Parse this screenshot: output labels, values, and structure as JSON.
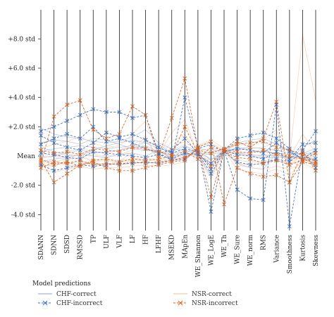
{
  "chart_data": {
    "type": "line",
    "subtype": "parallel-coordinates",
    "axes": [
      "SDANN",
      "SDNN",
      "SDSD",
      "RMSSD",
      "TP",
      "ULF",
      "VLF",
      "LF",
      "HF",
      "LFHF",
      "MSEKD",
      "MApEn",
      "WE_Shannon",
      "WE_LogE",
      "WE_Th",
      "WE_Sure",
      "WE_norm",
      "RMS",
      "Variance",
      "Smoothness",
      "Kurtosis",
      "Skewness"
    ],
    "y_ticks": [
      {
        "value": 8,
        "label": "+8.0 std"
      },
      {
        "value": 6,
        "label": "+6.0 std"
      },
      {
        "value": 4,
        "label": "+4.0 std"
      },
      {
        "value": 2,
        "label": "+2.0 std"
      },
      {
        "value": 0,
        "label": "Mean"
      },
      {
        "value": -2,
        "label": "-2.0 std"
      },
      {
        "value": -4,
        "label": "-4.0 std"
      }
    ],
    "ylim": [
      -4.8,
      9.6
    ],
    "grid": false,
    "legend": {
      "title": "Model predictions",
      "placement": "bottom",
      "entries": [
        {
          "label": "CHF-correct",
          "color": "#9db7e0",
          "style": "solid"
        },
        {
          "label": "CHF-incorrect",
          "color": "#3a6fc4",
          "style": "dashed-x"
        },
        {
          "label": "NSR-correct",
          "color": "#f3c7a8",
          "style": "solid"
        },
        {
          "label": "NSR-incorrect",
          "color": "#d9621f",
          "style": "dashed-x"
        }
      ]
    },
    "series": [
      {
        "name": "CHF-incorrect",
        "values": [
          1.7,
          2.0,
          2.4,
          2.8,
          3.2,
          3.0,
          3.0,
          2.6,
          2.8,
          0.2,
          -0.3,
          4.0,
          0.6,
          -3.8,
          0.4,
          -2.3,
          -2.9,
          -3.0,
          3.5,
          -4.8,
          0.4,
          1.7
        ]
      },
      {
        "name": "CHF-incorrect",
        "values": [
          0.8,
          1.2,
          1.5,
          1.2,
          2.0,
          1.0,
          1.2,
          0.9,
          0.5,
          0.2,
          0.4,
          1.2,
          0.2,
          -1.2,
          0.3,
          0.5,
          0.4,
          0.2,
          0.9,
          0.3,
          -0.2,
          0.4
        ]
      },
      {
        "name": "CHF-incorrect",
        "values": [
          0.2,
          0.1,
          -0.1,
          -0.2,
          0.3,
          0.2,
          0.1,
          0.0,
          -0.1,
          0.1,
          -0.2,
          0.2,
          0.1,
          -0.5,
          0.4,
          1.2,
          1.4,
          1.6,
          1.2,
          0.5,
          -0.3,
          -0.2
        ]
      },
      {
        "name": "CHF-incorrect",
        "values": [
          -0.6,
          -1.0,
          -0.8,
          -0.6,
          -0.7,
          -0.6,
          -0.5,
          -0.5,
          -0.4,
          -0.5,
          -0.3,
          -0.2,
          0.5,
          0.8,
          0.3,
          -0.4,
          -0.6,
          -0.5,
          -0.2,
          -0.4,
          0.3,
          -0.8
        ]
      },
      {
        "name": "CHF-incorrect",
        "values": [
          1.4,
          0.9,
          0.6,
          0.4,
          0.9,
          1.6,
          1.3,
          1.5,
          1.1,
          0.6,
          0.2,
          0.5,
          0.3,
          -0.9,
          0.4,
          0.1,
          0.0,
          -0.2,
          0.3,
          -0.2,
          0.8,
          0.9
        ]
      },
      {
        "name": "NSR-incorrect",
        "values": [
          -0.5,
          2.7,
          3.5,
          3.8,
          1.8,
          1.2,
          1.5,
          3.4,
          2.8,
          0.0,
          2.6,
          5.3,
          0.5,
          -2.8,
          0.4,
          1.0,
          0.6,
          1.2,
          3.7,
          -1.8,
          0.3,
          -1.0
        ]
      },
      {
        "name": "NSR-incorrect",
        "values": [
          -0.3,
          -1.8,
          -1.2,
          -0.6,
          -0.4,
          -0.8,
          -1.0,
          -1.0,
          -0.8,
          -0.6,
          -0.4,
          -0.3,
          0.6,
          1.0,
          -3.3,
          -0.8,
          -1.2,
          -1.4,
          -1.3,
          -1.8,
          -0.4,
          -0.6
        ]
      },
      {
        "name": "NSR-incorrect",
        "values": [
          -0.8,
          -0.4,
          -0.5,
          -0.3,
          -0.6,
          -0.5,
          -0.6,
          -0.4,
          -0.5,
          -0.4,
          -0.3,
          -0.1,
          0.4,
          0.2,
          0.5,
          0.8,
          0.9,
          1.0,
          0.6,
          0.4,
          0.1,
          -0.4
        ]
      },
      {
        "name": "NSR-incorrect",
        "values": [
          0.4,
          0.2,
          0.3,
          0.1,
          0.5,
          0.4,
          0.3,
          0.6,
          0.5,
          0.3,
          0.1,
          2.0,
          0.2,
          -0.7,
          0.3,
          -0.1,
          -0.2,
          -0.5,
          -0.3,
          -0.6,
          -0.3,
          0.2
        ]
      },
      {
        "name": "NSR-incorrect",
        "values": [
          -0.2,
          -0.6,
          -0.4,
          -0.7,
          -0.3,
          -0.2,
          -0.4,
          -0.2,
          -0.3,
          -0.2,
          0.0,
          0.3,
          -0.2,
          0.6,
          0.4,
          0.3,
          0.2,
          0.4,
          0.1,
          0.0,
          -0.2,
          -0.5
        ]
      },
      {
        "name": "CHF-correct",
        "values": [
          0.3,
          0.5,
          0.6,
          0.7,
          0.6,
          0.5,
          0.6,
          0.7,
          0.9,
          0.8,
          0.2,
          0.3,
          0.4,
          -0.3,
          0.4,
          0.5,
          0.6,
          0.5,
          0.4,
          0.2,
          0.1,
          0.3
        ]
      },
      {
        "name": "CHF-correct",
        "values": [
          0.9,
          1.1,
          1.0,
          0.8,
          1.2,
          1.1,
          0.8,
          0.5,
          0.4,
          0.3,
          0.0,
          0.1,
          0.2,
          0.1,
          0.3,
          0.2,
          0.1,
          0.0,
          0.1,
          -0.1,
          0.0,
          0.2
        ]
      },
      {
        "name": "CHF-correct",
        "values": [
          -0.1,
          0.0,
          0.2,
          0.4,
          0.2,
          0.3,
          0.4,
          0.6,
          0.7,
          0.3,
          -0.1,
          0.2,
          0.0,
          -0.6,
          0.3,
          0.9,
          1.1,
          1.2,
          0.8,
          0.4,
          -0.2,
          0.0
        ]
      },
      {
        "name": "CHF-correct",
        "values": [
          1.9,
          1.5,
          1.3,
          1.2,
          1.0,
          0.9,
          1.0,
          1.3,
          1.8,
          0.9,
          0.5,
          0.4,
          0.1,
          -1.4,
          0.4,
          -0.5,
          -0.8,
          -0.9,
          0.2,
          -0.3,
          0.6,
          1.1
        ]
      },
      {
        "name": "CHF-correct",
        "values": [
          0.6,
          0.3,
          0.1,
          0.0,
          0.4,
          0.7,
          0.9,
          1.1,
          0.9,
          0.5,
          0.3,
          0.7,
          0.3,
          -0.2,
          0.2,
          0.6,
          0.4,
          0.3,
          0.2,
          0.1,
          0.2,
          0.5
        ]
      },
      {
        "name": "CHF-correct",
        "values": [
          -0.4,
          -0.2,
          -0.1,
          0.1,
          0.0,
          -0.1,
          0.1,
          0.2,
          0.0,
          0.4,
          -0.2,
          -0.1,
          0.5,
          0.4,
          0.3,
          0.1,
          0.0,
          -0.1,
          -0.1,
          0.0,
          -0.1,
          -0.2
        ]
      },
      {
        "name": "NSR-correct",
        "values": [
          -0.7,
          -0.6,
          -0.5,
          -0.4,
          -0.6,
          -0.5,
          -0.6,
          -0.5,
          -0.4,
          -0.5,
          -0.3,
          -0.2,
          0.6,
          0.9,
          0.4,
          -0.3,
          -0.4,
          -0.4,
          -0.3,
          -0.5,
          -0.3,
          -0.6
        ]
      },
      {
        "name": "NSR-correct",
        "values": [
          -0.3,
          -0.4,
          -0.2,
          -0.1,
          -0.3,
          -0.2,
          -0.3,
          -0.2,
          -0.1,
          -0.3,
          -0.1,
          0.0,
          0.3,
          0.5,
          0.3,
          0.1,
          0.0,
          0.1,
          0.0,
          -0.2,
          -0.1,
          -0.3
        ]
      },
      {
        "name": "NSR-correct",
        "values": [
          0.2,
          0.0,
          0.3,
          0.5,
          0.3,
          0.2,
          0.4,
          0.8,
          1.2,
          -0.2,
          1.0,
          1.5,
          0.0,
          -1.0,
          0.3,
          -0.5,
          -0.6,
          -0.5,
          0.2,
          -0.4,
          0.0,
          0.1
        ]
      },
      {
        "name": "NSR-correct",
        "values": [
          -0.9,
          -1.1,
          -0.9,
          -0.7,
          -0.9,
          -0.8,
          -0.8,
          -0.7,
          -0.6,
          -0.7,
          -0.6,
          -0.4,
          0.7,
          1.1,
          0.5,
          -0.6,
          -0.8,
          -0.9,
          -0.7,
          -0.9,
          -0.5,
          -0.9
        ]
      },
      {
        "name": "NSR-correct",
        "values": [
          0.5,
          0.8,
          1.0,
          1.3,
          0.9,
          0.6,
          0.7,
          1.5,
          2.4,
          0.1,
          1.6,
          2.5,
          0.1,
          -1.6,
          0.3,
          0.8,
          0.9,
          1.1,
          1.8,
          -0.8,
          0.3,
          0.0
        ]
      },
      {
        "name": "NSR-correct",
        "values": [
          -0.5,
          -0.3,
          -0.6,
          -0.8,
          -0.4,
          -0.3,
          -0.5,
          -0.3,
          -0.2,
          -0.4,
          -0.2,
          -0.1,
          0.2,
          0.2,
          0.4,
          -0.9,
          -1.1,
          -1.2,
          -0.9,
          -1.3,
          -0.3,
          -0.4
        ]
      },
      {
        "name": "NSR-correct",
        "values": [
          0.0,
          -0.1,
          0.0,
          0.1,
          0.1,
          0.0,
          0.1,
          0.4,
          0.7,
          -0.1,
          0.4,
          0.8,
          -0.1,
          -0.3,
          0.3,
          0.2,
          0.3,
          0.3,
          0.5,
          -0.1,
          1.5,
          0.2
        ]
      },
      {
        "name": "NSR-correct",
        "values": [
          -0.6,
          -0.7,
          -0.3,
          0.2,
          -0.5,
          -0.6,
          -0.4,
          0.3,
          1.4,
          -0.3,
          0.6,
          1.0,
          0.3,
          -0.5,
          0.4,
          0.4,
          0.5,
          0.6,
          1.0,
          -0.2,
          8.3,
          3.8
        ]
      }
    ]
  }
}
